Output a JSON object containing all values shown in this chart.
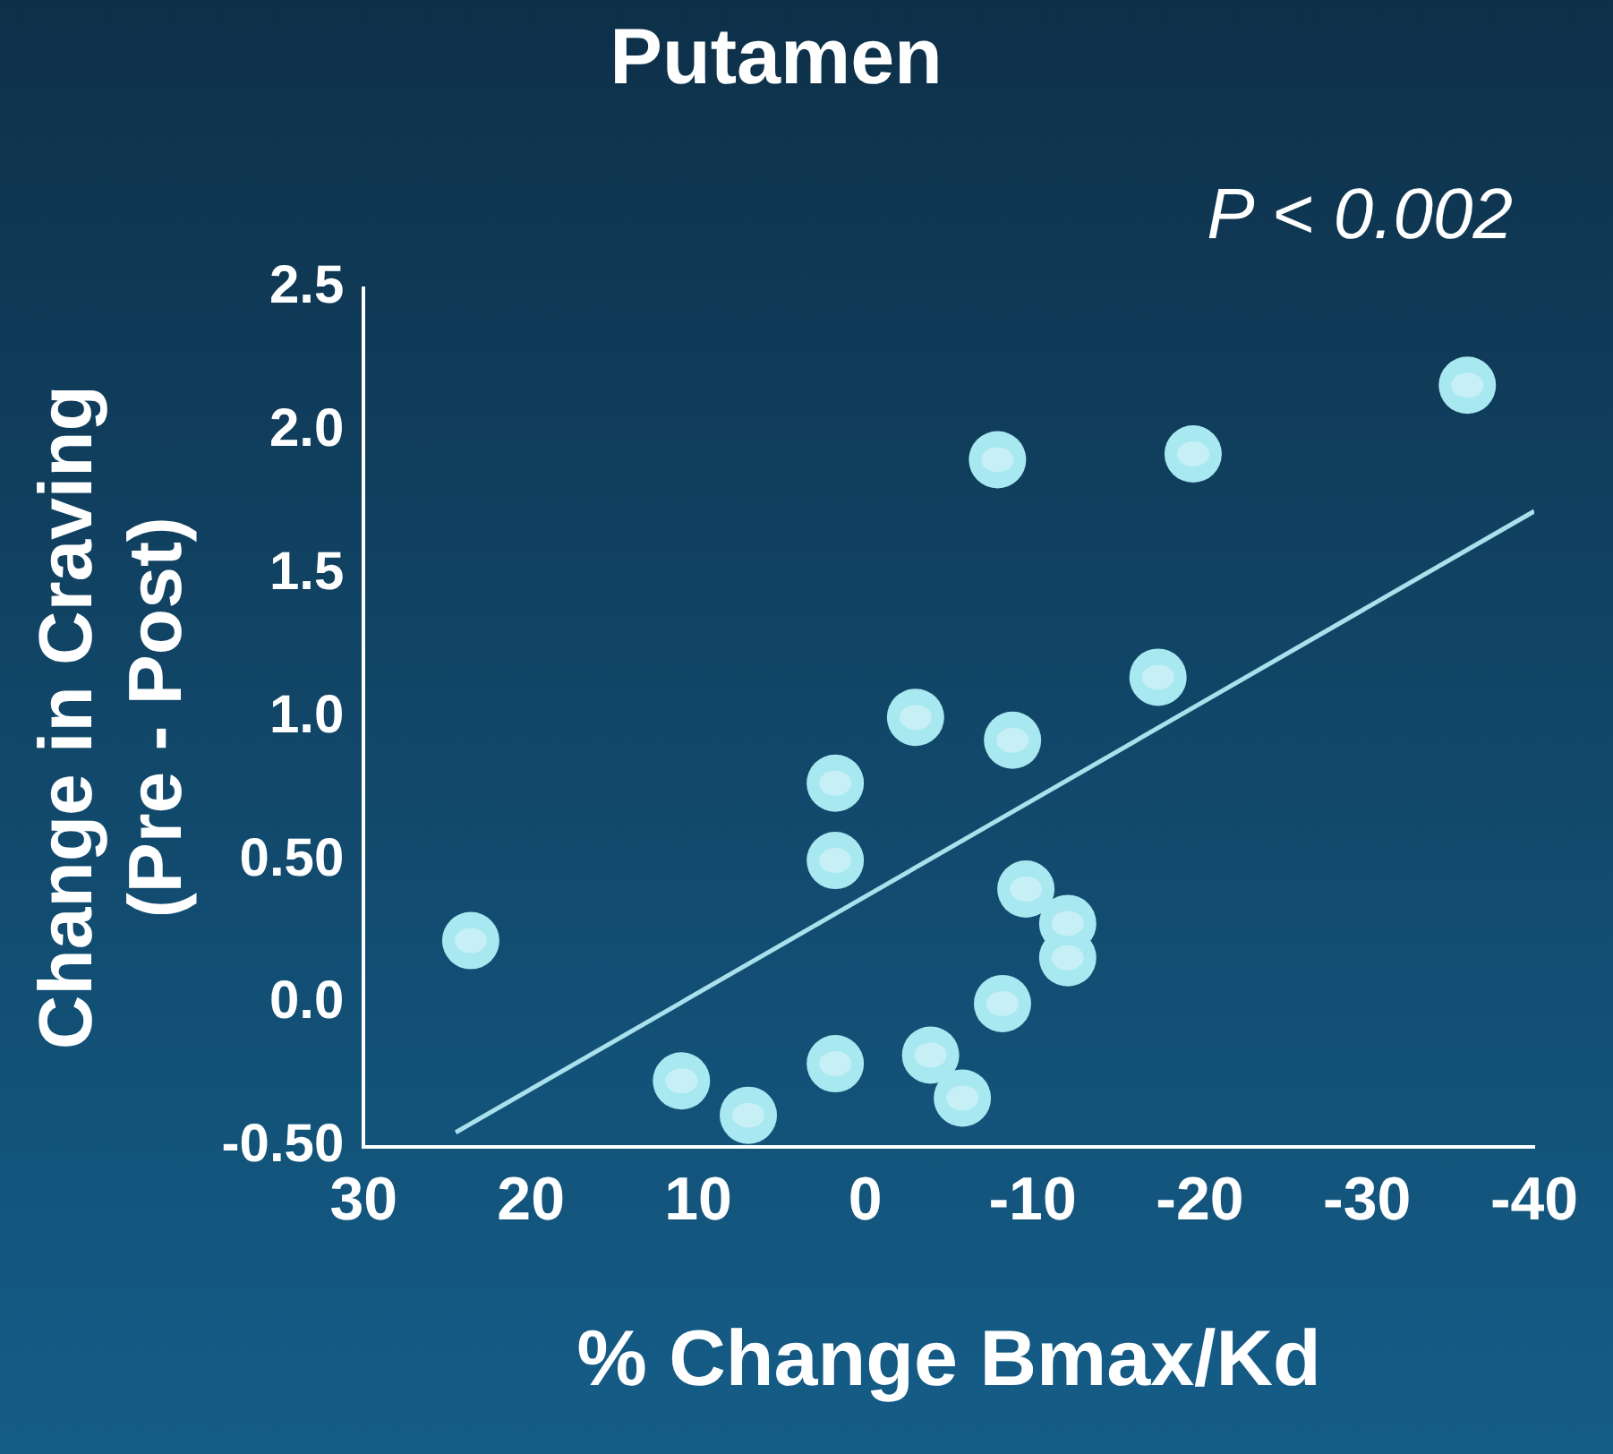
{
  "chart_data": {
    "type": "scatter",
    "title": "Putamen",
    "xlabel": "% Change Bmax/Kd",
    "ylabel": "Change in Craving\n(Pre - Post)",
    "annotations": [
      "P < 0.002"
    ],
    "xlim": [
      30,
      -40
    ],
    "xticks": [
      30,
      20,
      10,
      0,
      -10,
      -20,
      -30,
      -40
    ],
    "ylim": [
      -0.5,
      2.5
    ],
    "yticks": [
      {
        "value": 2.5,
        "label": "2.5"
      },
      {
        "value": 2,
        "label": "2.0"
      },
      {
        "value": 1.5,
        "label": "1.5"
      },
      {
        "value": 1,
        "label": "1.0"
      },
      {
        "value": 0.5,
        "label": "0.50"
      },
      {
        "value": 0,
        "label": "0.0"
      },
      {
        "value": -0.5,
        "label": "-0.50"
      }
    ],
    "grid": false,
    "legend": false,
    "marker": "circle",
    "series": [
      {
        "color": "#a8e8f0",
        "x": [
          23.6,
          11.0,
          7.0,
          1.8,
          1.8,
          1.8,
          -3.0,
          -3.9,
          -5.8,
          -7.9,
          -8.2,
          -8.8,
          -9.6,
          -12.1,
          -12.1,
          -17.5,
          -19.6,
          -36.0
        ],
        "values": [
          0.22,
          -0.27,
          -0.39,
          0.77,
          0.5,
          -0.21,
          1.0,
          -0.18,
          -0.33,
          1.9,
          0.0,
          0.92,
          0.4,
          0.28,
          0.16,
          1.14,
          1.92,
          2.16
        ]
      },
      {
        "type": "line",
        "color": "#a8e0ec",
        "marker": "none",
        "x": [
          24.5,
          -40
        ],
        "values": [
          -0.45,
          1.72
        ]
      }
    ]
  }
}
